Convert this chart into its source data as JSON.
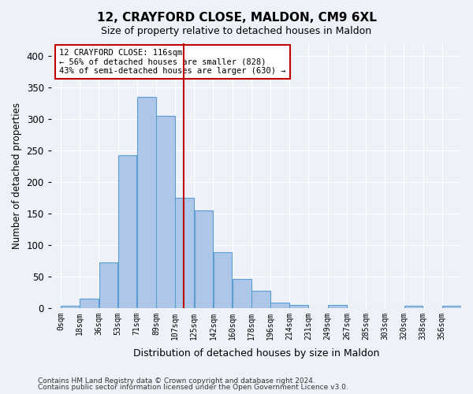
{
  "title1": "12, CRAYFORD CLOSE, MALDON, CM9 6XL",
  "title2": "Size of property relative to detached houses in Maldon",
  "xlabel": "Distribution of detached houses by size in Maldon",
  "ylabel": "Number of detached properties",
  "bin_labels": [
    "0sqm",
    "18sqm",
    "36sqm",
    "53sqm",
    "71sqm",
    "89sqm",
    "107sqm",
    "125sqm",
    "142sqm",
    "160sqm",
    "178sqm",
    "196sqm",
    "214sqm",
    "231sqm",
    "249sqm",
    "267sqm",
    "285sqm",
    "303sqm",
    "320sqm",
    "338sqm",
    "356sqm"
  ],
  "bar_values": [
    4,
    15,
    72,
    242,
    335,
    305,
    175,
    155,
    88,
    46,
    27,
    8,
    5,
    0,
    5,
    0,
    0,
    0,
    4,
    0,
    4
  ],
  "bar_color": "#aec6e8",
  "bar_edge_color": "#5a9fd4",
  "property_value": 116,
  "property_label": "12 CRAYFORD CLOSE: 116sqm",
  "annotation_line1": "← 56% of detached houses are smaller (828)",
  "annotation_line2": "43% of semi-detached houses are larger (630) →",
  "vline_color": "#c00000",
  "annotation_box_edge_color": "#c00000",
  "ylim": [
    0,
    420
  ],
  "yticks": [
    0,
    50,
    100,
    150,
    200,
    250,
    300,
    350,
    400
  ],
  "footer1": "Contains HM Land Registry data © Crown copyright and database right 2024.",
  "footer2": "Contains public sector information licensed under the Open Government Licence v3.0.",
  "bg_color": "#eef2f8",
  "plot_bg_color": "#eef2f8",
  "bin_width": 18
}
